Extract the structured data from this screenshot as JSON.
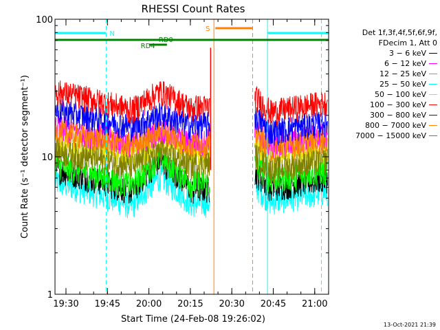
{
  "chart_data": {
    "type": "line",
    "title": "RHESSI Count Rates",
    "xlabel": "Start Time (24-Feb-08 19:26:02)",
    "ylabel": "Count Rate (s⁻¹ detector segment⁻¹)",
    "yscale": "log",
    "ylim": [
      1,
      100
    ],
    "y_ticks": [
      "1",
      "10",
      "100"
    ],
    "xlim_minutes_from_start": [
      0,
      99
    ],
    "x_ticks": [
      "19:30",
      "19:45",
      "20:00",
      "20:15",
      "20:30",
      "20:45",
      "21:00"
    ],
    "x_tick_minutes": [
      3.97,
      18.97,
      33.97,
      48.97,
      63.97,
      78.97,
      93.97
    ],
    "legend_header": [
      "Det 1f,3f,4f,5f,6f,9f,",
      "FDecim 1, Att 0"
    ],
    "legend_placement": "right, outside plot",
    "grid": false,
    "data_gap_minutes": [
      56.5,
      72.3
    ],
    "series": [
      {
        "name": "3 - 6 keV",
        "color": "#000000",
        "values_start": 8.2,
        "values_dip": 5.6,
        "values_peak": 9.5,
        "values_end": 7.0
      },
      {
        "name": "6 - 12 keV",
        "color": "#ff00ff",
        "values_start": 16.5,
        "values_dip": 12.5,
        "values_peak": 15.5,
        "values_end": 14.5
      },
      {
        "name": "12 - 25 keV",
        "color": "#00ff00",
        "values_start": 8.8,
        "values_dip": 6.2,
        "values_peak": 9.8,
        "values_end": 8.0
      },
      {
        "name": "25 - 50 keV",
        "color": "#00ffff",
        "values_start": 6.6,
        "values_dip": 4.4,
        "values_peak": 7.2,
        "values_end": 5.6
      },
      {
        "name": "50 - 100 keV",
        "color": "#dcdc00",
        "values_start": 13.0,
        "values_dip": 10.0,
        "values_peak": 12.5,
        "values_end": 11.5
      },
      {
        "name": "100 - 300 keV",
        "color": "#ff0000",
        "values_start": 30.0,
        "values_dip": 22.0,
        "values_peak": 30.0,
        "values_end": 25.0
      },
      {
        "name": "300 - 800 keV",
        "color": "#0000ff",
        "values_start": 22.0,
        "values_dip": 16.5,
        "values_peak": 20.5,
        "values_end": 18.0
      },
      {
        "name": "800 - 7000 keV",
        "color": "#ff8000",
        "values_start": 15.5,
        "values_dip": 12.0,
        "values_peak": 15.5,
        "values_end": 13.5
      },
      {
        "name": "7000 - 15000 keV",
        "color": "#808000",
        "values_start": 11.0,
        "values_dip": 8.5,
        "values_peak": 11.0,
        "values_end": 9.5
      }
    ],
    "flags": [
      {
        "label": "N",
        "color": "#00ffff",
        "segments_minutes": [
          [
            0,
            18.5
          ],
          [
            76.9,
            99
          ]
        ]
      },
      {
        "label": "S",
        "color": "#ff8000",
        "segments_minutes": [
          [
            58.0,
            71.5
          ]
        ]
      },
      {
        "label": "RD0",
        "color": "#008000",
        "segments_minutes": [
          [
            0,
            99
          ]
        ]
      },
      {
        "label": "RD4",
        "color": "#008000",
        "segments_minutes": [
          [
            34.0,
            40.5
          ]
        ]
      }
    ],
    "vertical_markers": [
      {
        "color": "#00ffff",
        "style": "dashed",
        "minute": 18.5
      },
      {
        "color": "#00ffff",
        "style": "solid",
        "minute": 76.9
      },
      {
        "color": "#00ffff",
        "style": "dashed",
        "minute": 96.4
      },
      {
        "color": "#ff8000",
        "style": "solid",
        "minute": 57.5
      },
      {
        "color": "#ff8000",
        "style": "dashed",
        "minute": 71.5
      }
    ]
  },
  "footer": {
    "date": "13-Oct-2021 21:39"
  }
}
